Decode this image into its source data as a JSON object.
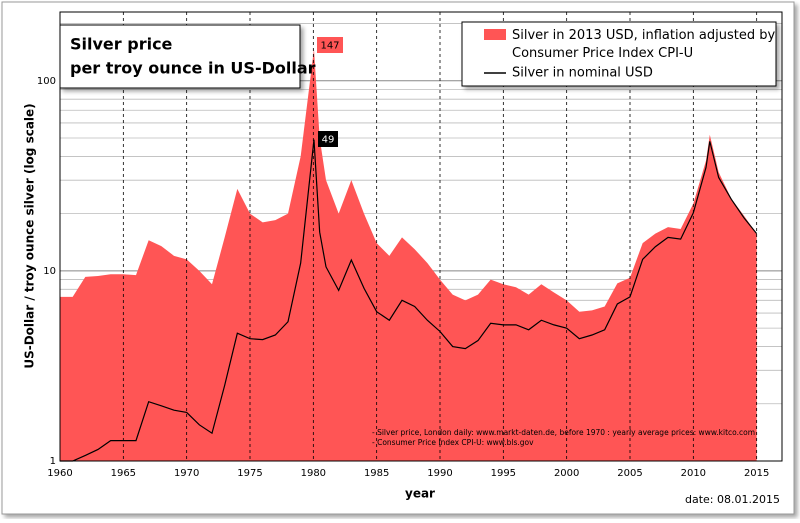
{
  "chart_data": {
    "type": "area-line",
    "title": [
      "Silver price",
      "per troy ounce in US-Dollar"
    ],
    "y_label": "US-Dollar / troy ounce silver (log scale)",
    "x_label": "year",
    "date": "date: 08.01.2015",
    "notes": [
      "- Silver price, London daily: www.markt-daten.de,  before 1970 :  yearly  average prices: www.kitco.com",
      "- Consumer Price Index CPI-U: www.bls.gov"
    ],
    "annotations": [
      "147",
      "49"
    ],
    "log_y": true,
    "xlim": [
      1960,
      2017
    ],
    "xticks": [
      1960,
      1965,
      1970,
      1975,
      1980,
      1985,
      1990,
      1995,
      2000,
      2005,
      2010,
      2015
    ],
    "ylim": [
      1,
      230
    ],
    "yticks": [
      1,
      10,
      100
    ],
    "yminor_ticks": [
      2,
      3,
      4,
      5,
      6,
      7,
      8,
      9,
      20,
      30,
      40,
      50,
      60,
      70,
      80,
      90,
      200
    ],
    "x": [
      1960,
      1961,
      1962,
      1963,
      1964,
      1965,
      1966,
      1967,
      1968,
      1969,
      1970,
      1971,
      1972,
      1973,
      1974,
      1975,
      1976,
      1977,
      1978,
      1979,
      1980.05,
      1980.5,
      1981,
      1982,
      1983,
      1984,
      1985,
      1986,
      1987,
      1988,
      1989,
      1990,
      1991,
      1992,
      1993,
      1994,
      1995,
      1996,
      1997,
      1998,
      1999,
      2000,
      2001,
      2002,
      2003,
      2004,
      2005,
      2006,
      2007,
      2008,
      2009,
      2010,
      2011,
      2011.3,
      2012,
      2013,
      2014,
      2015
    ],
    "series": [
      {
        "name": "Silver in 2013 USD, inflation adjusted by Consumer Price Index CPI-U",
        "color": "#ff5555",
        "style": "area",
        "values": [
          7.3,
          7.3,
          9.3,
          9.4,
          9.6,
          9.6,
          9.5,
          14.5,
          13.5,
          12,
          11.5,
          10,
          8.5,
          15,
          27,
          20,
          18,
          18.5,
          20,
          40,
          147,
          50,
          30,
          20,
          30,
          20,
          14,
          12,
          15,
          13,
          11,
          9,
          7.5,
          7,
          7.5,
          9,
          8.5,
          8.2,
          7.5,
          8.5,
          7.7,
          7,
          6.1,
          6.2,
          6.5,
          8.6,
          9.2,
          14,
          15.7,
          17,
          16.6,
          22.6,
          38,
          52,
          33,
          24,
          19.5,
          15.7
        ]
      },
      {
        "name": "Silver in nominal USD",
        "color": "#000000",
        "style": "line",
        "values": [
          1,
          1,
          1.07,
          1.15,
          1.28,
          1.28,
          1.28,
          2.05,
          1.95,
          1.85,
          1.8,
          1.55,
          1.4,
          2.5,
          4.7,
          4.4,
          4.35,
          4.6,
          5.4,
          11,
          49,
          16,
          10.5,
          7.9,
          11.4,
          8.1,
          6.1,
          5.5,
          7,
          6.5,
          5.5,
          4.8,
          4,
          3.9,
          4.3,
          5.3,
          5.2,
          5.2,
          4.9,
          5.5,
          5.2,
          5,
          4.4,
          4.6,
          4.9,
          6.7,
          7.3,
          11.5,
          13.4,
          15,
          14.7,
          20.2,
          35,
          48,
          31,
          23.8,
          19,
          15.7
        ]
      }
    ]
  }
}
